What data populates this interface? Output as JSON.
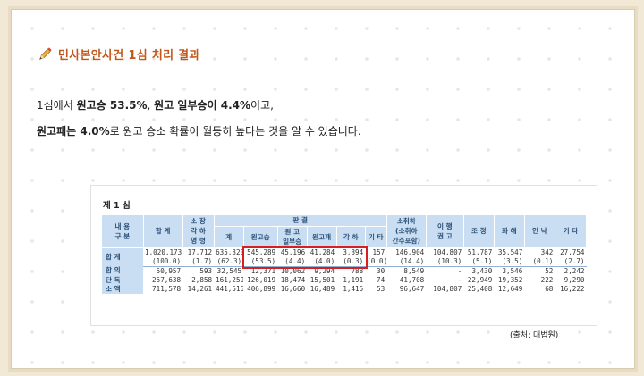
{
  "title": "민사본안사건 1심 처리 결과",
  "paragraph": {
    "line1": {
      "pre": "1심에서 ",
      "b1": "원고승 53.5%",
      "mid": ", ",
      "b2": "원고 일부승이 4.4%",
      "post": "이고,"
    },
    "line2": {
      "b1": "원고패는 4.0%",
      "post": "로 원고 승소 확률이 월등히 높다는 것을 알 수 있습니다."
    }
  },
  "table": {
    "label": "제 1 심",
    "headers": {
      "corner": "내 용\n구 분",
      "total": "합 계",
      "lawsuit_dismissal": "소 장\n각 하\n명 령",
      "judgment": "판 결",
      "judgment_sub": [
        "계",
        "원고승",
        "원 고\n일부승",
        "원고패",
        "각 하",
        "기 타"
      ],
      "withdrawal": "소취하\n(소취하\n간주포함)",
      "execution": "이 행\n권 고",
      "mediation": "조 정",
      "settlement": "화 해",
      "acceptance": "인 낙",
      "other": "기 타"
    },
    "rows": [
      {
        "label": "합 계",
        "top": [
          "1,020,173",
          "17,712",
          "635,320",
          "545,289",
          "45,196",
          "41,284",
          "3,394",
          "157",
          "146,904",
          "104,807",
          "51,787",
          "35,547",
          "342",
          "27,754"
        ],
        "bottom": [
          "(100.0)",
          "(1.7)",
          "(62.3)",
          "(53.5)",
          "(4.4)",
          "(4.0)",
          "(0.3)",
          "(0.0)",
          "(14.4)",
          "(10.3)",
          "(5.1)",
          "(3.5)",
          "(0.1)",
          "(2.7)"
        ]
      },
      {
        "label": "합 의",
        "values": [
          "50,957",
          "593",
          "32,545",
          "12,371",
          "10,062",
          "9,294",
          "788",
          "30",
          "8,549",
          "-",
          "3,430",
          "3,546",
          "52",
          "2,242"
        ]
      },
      {
        "label": "단 독",
        "values": [
          "257,638",
          "2,858",
          "161,259",
          "126,019",
          "18,474",
          "15,501",
          "1,191",
          "74",
          "41,708",
          "-",
          "22,949",
          "19,352",
          "222",
          "9,290"
        ]
      },
      {
        "label": "소 액",
        "values": [
          "711,578",
          "14,261",
          "441,516",
          "406,899",
          "16,660",
          "16,489",
          "1,415",
          "53",
          "96,647",
          "104,807",
          "25,408",
          "12,649",
          "68",
          "16,222"
        ]
      }
    ]
  },
  "source": "(출처: 대법원)",
  "colors": {
    "title": "#c2571a",
    "header_bg": "#c9def2",
    "highlight": "#d42020"
  }
}
